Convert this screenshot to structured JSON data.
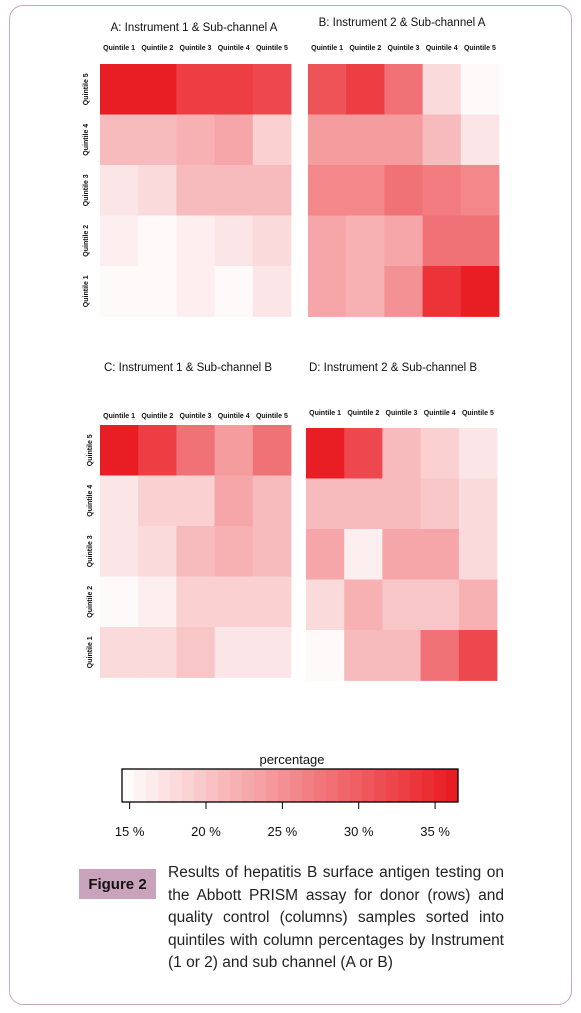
{
  "figure": {
    "label": "Figure 2",
    "caption": "Results of hepatitis B surface antigen testing on the Abbott PRISM assay for donor (rows) and quality control (columns) samples sorted into quintiles with column percentages by Instrument (1 or 2)  and sub channel (A or B)"
  },
  "colorbar": {
    "title": "percentage",
    "ticks": [
      "15 %",
      "20 %",
      "25 %",
      "30 %",
      "35 %"
    ],
    "tick_values": [
      15,
      20,
      25,
      30,
      35
    ],
    "range": [
      14.5,
      36.5
    ],
    "low_color": "#ffffff",
    "high_color": "#e8191f"
  },
  "chart_data": [
    {
      "type": "heatmap",
      "title": "A: Instrument 1 & Sub-channel A",
      "columns": [
        "Quintile 1",
        "Quintile 2",
        "Quintile 3",
        "Quintile 4",
        "Quintile 5"
      ],
      "rows": [
        "Quintile 5",
        "Quintile 4",
        "Quintile 3",
        "Quintile 2",
        "Quintile 1"
      ],
      "values": [
        [
          36,
          36,
          33,
          33,
          32
        ],
        [
          21,
          21,
          22,
          23,
          19
        ],
        [
          17,
          18,
          21,
          21,
          21
        ],
        [
          16,
          15,
          16,
          17,
          18
        ],
        [
          15,
          15,
          16,
          15,
          17
        ]
      ]
    },
    {
      "type": "heatmap",
      "title": "B:  Instrument 2 & Sub-channel A",
      "columns": [
        "Quintile 1",
        "Quintile 2",
        "Quintile 3",
        "Quintile 4",
        "Quintile 5"
      ],
      "rows": [
        "Quintile 5",
        "Quintile 4",
        "Quintile 3",
        "Quintile 2",
        "Quintile 1"
      ],
      "values": [
        [
          31,
          33,
          28,
          18,
          15
        ],
        [
          24,
          24,
          24,
          21,
          17
        ],
        [
          26,
          26,
          28,
          27,
          26
        ],
        [
          23,
          22,
          23,
          28,
          28
        ],
        [
          23,
          22,
          25,
          34,
          36
        ]
      ]
    },
    {
      "type": "heatmap",
      "title": "C: Instrument 1 & Sub-channel B",
      "columns": [
        "Quintile 1",
        "Quintile 2",
        "Quintile 3",
        "Quintile 4",
        "Quintile 5"
      ],
      "rows": [
        "Quintile 5",
        "Quintile 4",
        "Quintile 3",
        "Quintile 2",
        "Quintile 1"
      ],
      "values": [
        [
          36,
          33,
          28,
          24,
          28
        ],
        [
          17,
          19,
          19,
          23,
          21
        ],
        [
          17,
          18,
          21,
          22,
          21
        ],
        [
          15,
          16,
          19,
          19,
          19
        ],
        [
          18,
          18,
          20,
          17,
          17
        ]
      ]
    },
    {
      "type": "heatmap",
      "title": "D:  Instrument 2 & Sub-channel B",
      "columns": [
        "Quintile 1",
        "Quintile 2",
        "Quintile 3",
        "Quintile 4",
        "Quintile 5"
      ],
      "rows": [
        "Quintile 5",
        "Quintile 4",
        "Quintile 3",
        "Quintile 2",
        "Quintile 1"
      ],
      "values": [
        [
          36,
          32,
          21,
          19,
          17
        ],
        [
          21,
          21,
          21,
          20,
          18
        ],
        [
          23,
          16,
          23,
          23,
          18
        ],
        [
          18,
          22,
          20,
          20,
          22
        ],
        [
          15,
          21,
          21,
          28,
          32
        ]
      ]
    }
  ]
}
